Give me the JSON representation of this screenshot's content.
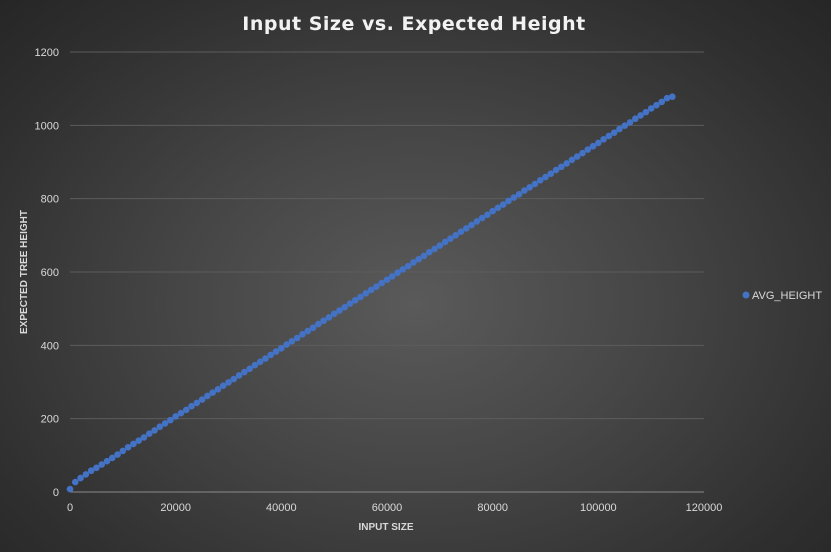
{
  "chart_data": {
    "type": "scatter",
    "title": "Input Size vs. Expected Height",
    "xlabel": "INPUT SIZE",
    "ylabel": "EXPECTED TREE HEIGHT",
    "xlim": [
      0,
      120000
    ],
    "ylim": [
      0,
      1200
    ],
    "x_ticks": [
      0,
      20000,
      40000,
      60000,
      80000,
      100000,
      120000
    ],
    "y_ticks": [
      0,
      200,
      400,
      600,
      800,
      1000,
      1200
    ],
    "grid": true,
    "legend_position": "right",
    "series": [
      {
        "name": "AVG_HEIGHT",
        "color": "#4472c4",
        "x_start": 0,
        "x_step": 1000,
        "values": [
          8,
          27,
          38,
          48,
          58,
          66,
          75,
          84,
          93,
          102,
          112,
          122,
          131,
          140,
          149,
          159,
          168,
          178,
          187,
          196,
          206,
          215,
          224,
          234,
          243,
          252,
          262,
          271,
          280,
          290,
          299,
          308,
          318,
          327,
          336,
          346,
          355,
          364,
          374,
          383,
          392,
          402,
          411,
          420,
          430,
          439,
          448,
          458,
          467,
          476,
          486,
          495,
          504,
          514,
          523,
          532,
          542,
          551,
          560,
          570,
          579,
          588,
          598,
          607,
          616,
          626,
          635,
          644,
          654,
          663,
          672,
          682,
          691,
          700,
          710,
          719,
          728,
          738,
          747,
          756,
          766,
          775,
          784,
          794,
          803,
          812,
          822,
          831,
          840,
          850,
          859,
          868,
          878,
          887,
          896,
          906,
          915,
          924,
          934,
          943,
          952,
          962,
          971,
          980,
          990,
          999,
          1008,
          1018,
          1027,
          1036,
          1046,
          1055,
          1064,
          1074,
          1078
        ]
      }
    ]
  }
}
